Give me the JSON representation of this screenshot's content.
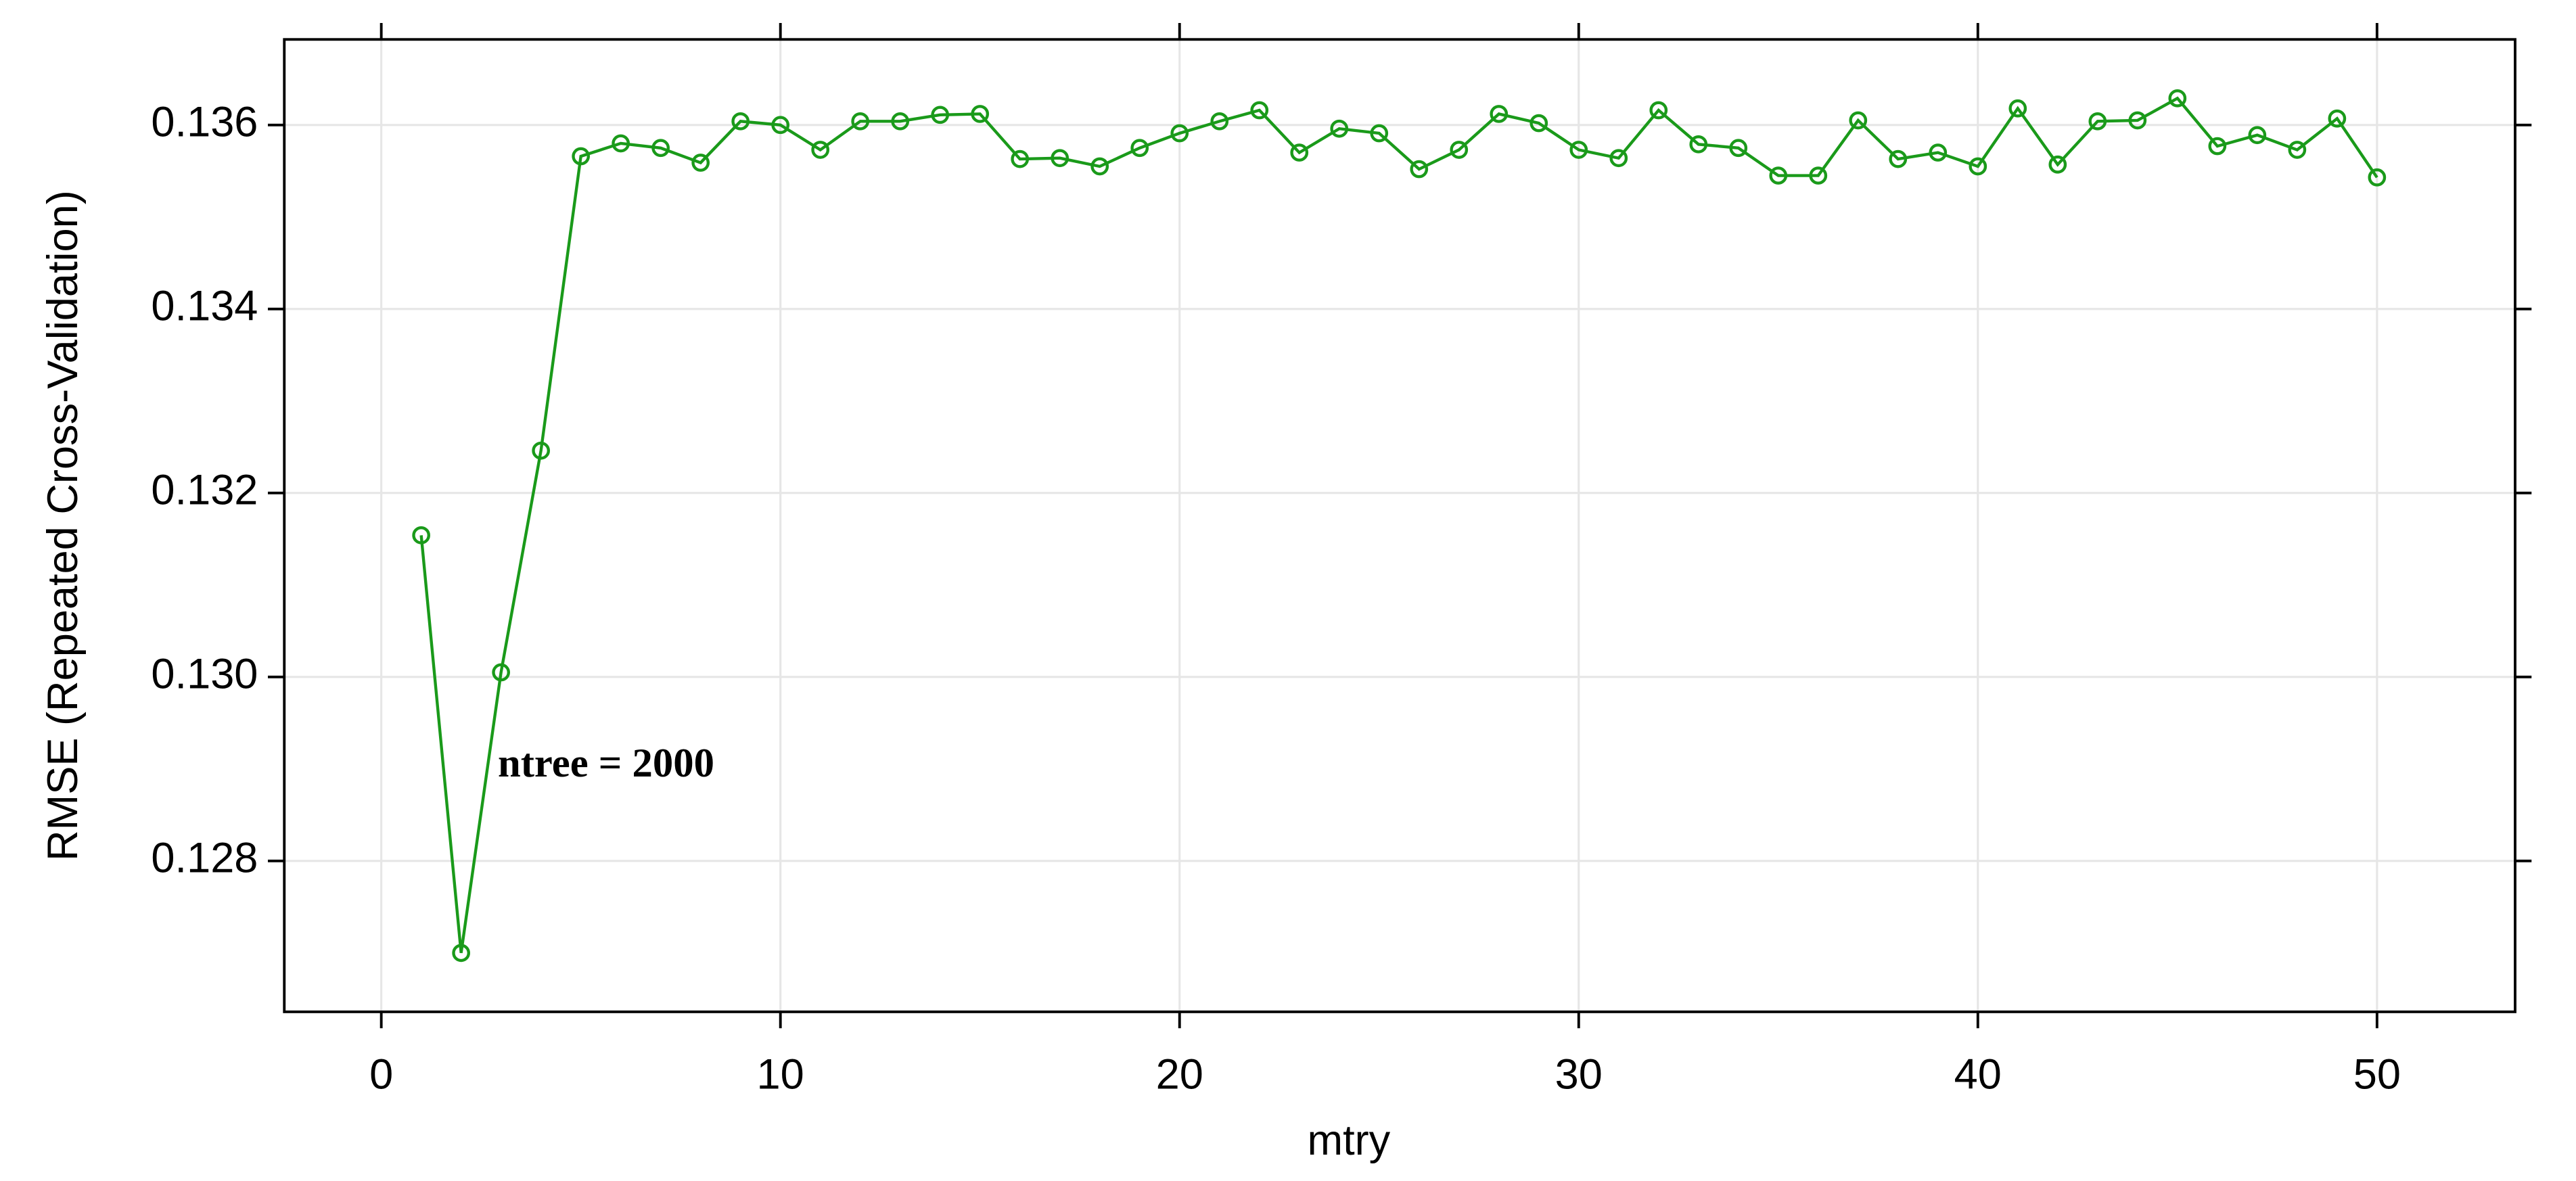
{
  "chart_data": {
    "type": "line",
    "x_label": "mtry",
    "y_label": "RMSE (Repeated Cross-Validation)",
    "annotation": "ntree = 2000",
    "color": "#1a9a1a",
    "annotation_color": "#1a7a1a",
    "grid": true,
    "x": [
      1,
      2,
      3,
      4,
      5,
      6,
      7,
      8,
      9,
      10,
      11,
      12,
      13,
      14,
      15,
      16,
      17,
      18,
      19,
      20,
      21,
      22,
      23,
      24,
      25,
      26,
      27,
      28,
      29,
      30,
      31,
      32,
      33,
      34,
      35,
      36,
      37,
      38,
      39,
      40,
      41,
      42,
      43,
      44,
      45,
      46,
      47,
      48,
      49,
      50
    ],
    "values": [
      0.13154,
      0.127,
      0.13005,
      0.13246,
      0.13566,
      0.1358,
      0.13575,
      0.13559,
      0.13604,
      0.136,
      0.13573,
      0.13604,
      0.13604,
      0.13611,
      0.13612,
      0.13563,
      0.13564,
      0.13555,
      0.13575,
      0.13591,
      0.13604,
      0.13616,
      0.1357,
      0.13596,
      0.13591,
      0.13552,
      0.13573,
      0.13612,
      0.13602,
      0.13573,
      0.13564,
      0.13616,
      0.13579,
      0.13575,
      0.13545,
      0.13545,
      0.13605,
      0.13563,
      0.1357,
      0.13555,
      0.13618,
      0.13557,
      0.13604,
      0.13605,
      0.13629,
      0.13577,
      0.13589,
      0.13573,
      0.13607,
      0.13543
    ],
    "xlim": [
      -2.43,
      53.46
    ],
    "ylim": [
      0.12636,
      0.13693
    ],
    "xticks": [
      0,
      10,
      20,
      30,
      40,
      50
    ],
    "yticks": [
      0.128,
      {
        "value": 0.13,
        "label": "0.130"
      },
      0.132,
      0.134,
      0.136
    ]
  }
}
